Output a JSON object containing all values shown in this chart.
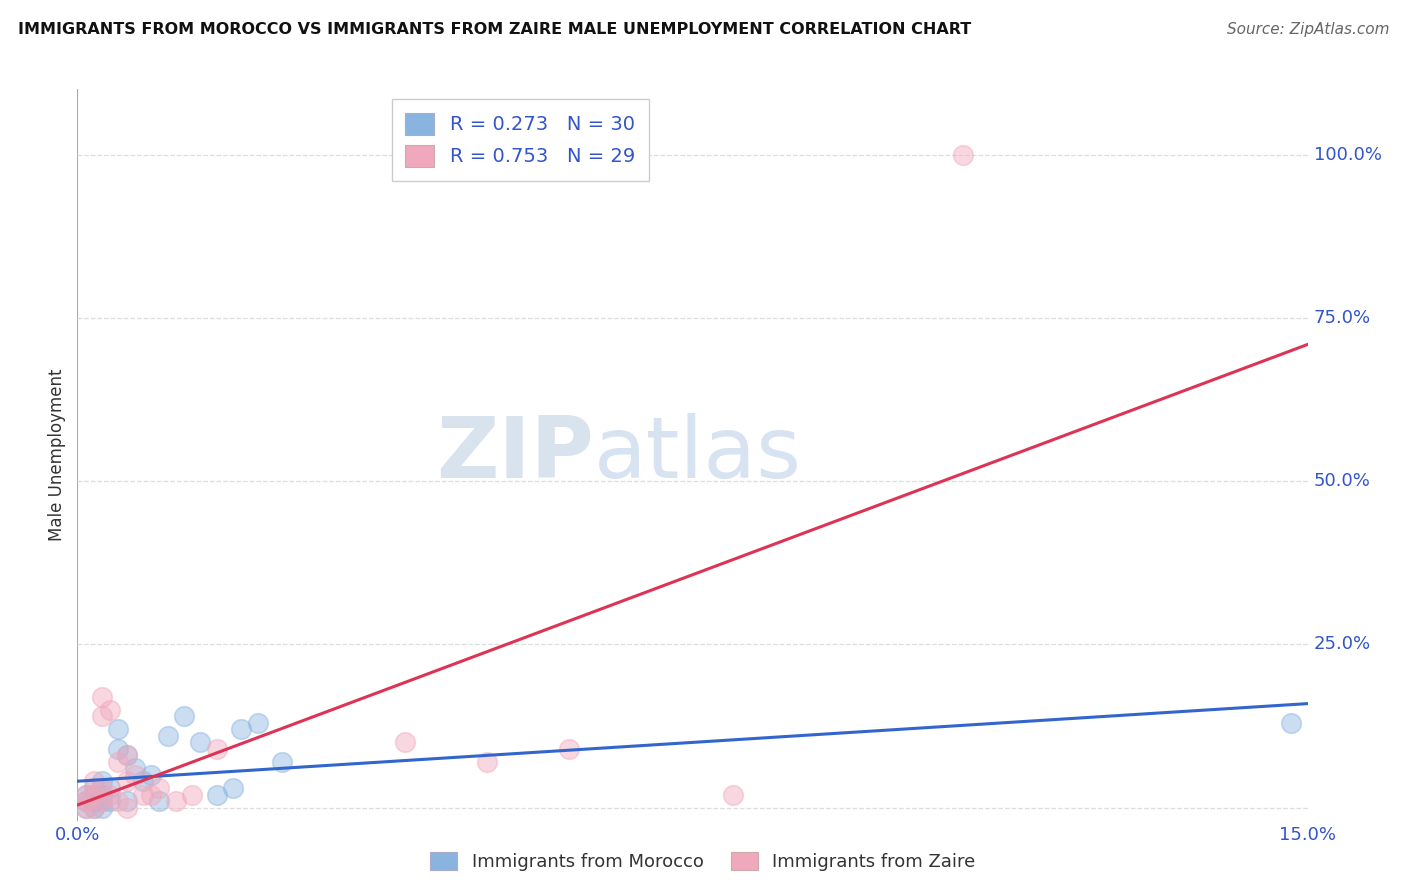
{
  "title": "IMMIGRANTS FROM MOROCCO VS IMMIGRANTS FROM ZAIRE MALE UNEMPLOYMENT CORRELATION CHART",
  "source": "Source: ZipAtlas.com",
  "ylabel_label": "Male Unemployment",
  "xlim": [
    0.0,
    0.15
  ],
  "ylim": [
    -0.02,
    1.1
  ],
  "ytick_vals": [
    0.0,
    0.25,
    0.5,
    0.75,
    1.0
  ],
  "ytick_labels": [
    "",
    "25.0%",
    "50.0%",
    "75.0%",
    "100.0%"
  ],
  "morocco_color": "#8ab4e0",
  "zaire_color": "#f0a8bc",
  "morocco_line_color": "#3366cc",
  "zaire_line_color": "#dd3355",
  "legend_text_color": "#3355cc",
  "r_morocco": 0.273,
  "n_morocco": 30,
  "r_zaire": 0.753,
  "n_zaire": 29,
  "watermark_zip": "ZIP",
  "watermark_atlas": "atlas",
  "morocco_x": [
    0.001,
    0.001,
    0.001,
    0.002,
    0.002,
    0.002,
    0.002,
    0.003,
    0.003,
    0.003,
    0.003,
    0.004,
    0.004,
    0.005,
    0.005,
    0.006,
    0.006,
    0.007,
    0.008,
    0.009,
    0.01,
    0.011,
    0.013,
    0.015,
    0.017,
    0.019,
    0.02,
    0.022,
    0.025,
    0.148
  ],
  "morocco_y": [
    0.0,
    0.01,
    0.02,
    0.0,
    0.01,
    0.02,
    0.03,
    0.0,
    0.01,
    0.02,
    0.04,
    0.01,
    0.03,
    0.09,
    0.12,
    0.01,
    0.08,
    0.06,
    0.04,
    0.05,
    0.01,
    0.11,
    0.14,
    0.1,
    0.02,
    0.03,
    0.12,
    0.13,
    0.07,
    0.13
  ],
  "zaire_x": [
    0.001,
    0.001,
    0.001,
    0.002,
    0.002,
    0.002,
    0.003,
    0.003,
    0.003,
    0.003,
    0.004,
    0.004,
    0.005,
    0.005,
    0.006,
    0.006,
    0.006,
    0.007,
    0.008,
    0.009,
    0.01,
    0.012,
    0.014,
    0.017,
    0.04,
    0.05,
    0.06,
    0.08,
    0.108
  ],
  "zaire_y": [
    0.0,
    0.01,
    0.02,
    0.0,
    0.02,
    0.04,
    0.01,
    0.03,
    0.17,
    0.14,
    0.02,
    0.15,
    0.01,
    0.07,
    0.0,
    0.04,
    0.08,
    0.05,
    0.02,
    0.02,
    0.03,
    0.01,
    0.02,
    0.09,
    0.1,
    0.07,
    0.09,
    0.02,
    1.0
  ],
  "background_color": "#ffffff",
  "grid_color": "#dddddd",
  "marker_size": 200
}
